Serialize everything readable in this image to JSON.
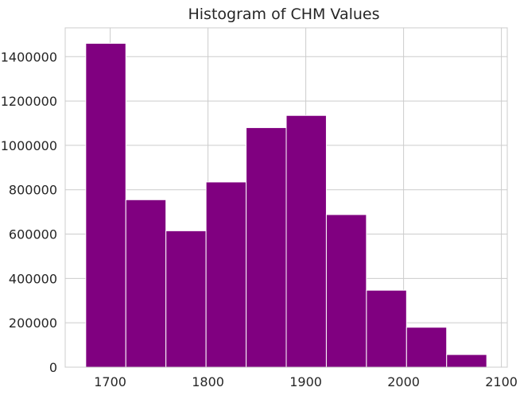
{
  "chart_data": {
    "type": "histogram",
    "title": "Histogram of CHM Values",
    "xlabel": "",
    "ylabel": "",
    "bar_color": "#800080",
    "grid": true,
    "xlim": [
      1654,
      2106
    ],
    "ylim": [
      0,
      1530000
    ],
    "xticks": [
      1700,
      1800,
      1900,
      2000,
      2100
    ],
    "yticks": [
      0,
      200000,
      400000,
      600000,
      800000,
      1000000,
      1200000,
      1400000
    ],
    "bins": [
      {
        "start": 1675,
        "end": 1716,
        "count": 1460000
      },
      {
        "start": 1716,
        "end": 1757,
        "count": 755000
      },
      {
        "start": 1757,
        "end": 1798,
        "count": 615000
      },
      {
        "start": 1798,
        "end": 1839,
        "count": 835000
      },
      {
        "start": 1839,
        "end": 1880,
        "count": 1080000
      },
      {
        "start": 1880,
        "end": 1921,
        "count": 1135000
      },
      {
        "start": 1921,
        "end": 1962,
        "count": 688000
      },
      {
        "start": 1962,
        "end": 2003,
        "count": 347000
      },
      {
        "start": 2003,
        "end": 2044,
        "count": 180000
      },
      {
        "start": 2044,
        "end": 2085,
        "count": 57000
      }
    ]
  }
}
